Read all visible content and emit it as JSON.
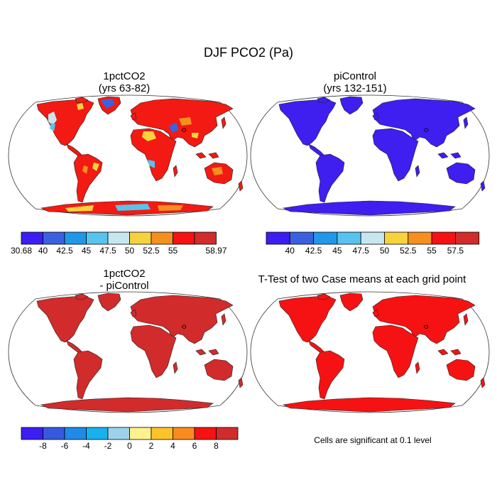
{
  "title": "DJF PCO2 (Pa)",
  "panels": [
    {
      "title_line1": "1pctCO2",
      "title_line2": "(yrs 63-82)"
    },
    {
      "title_line1": "piControl",
      "title_line2": "(yrs 132-151)"
    },
    {
      "title_line1": "1pctCO2",
      "title_line2": "- piControl"
    },
    {
      "title_line1": "T-Test of two Case means at each grid point",
      "title_line2": ""
    }
  ],
  "colorbars": [
    {
      "colors": [
        "#3c1ef2",
        "#3a62e0",
        "#1f98ea",
        "#56c4ee",
        "#c6e6f0",
        "#f7d23c",
        "#f58f1f",
        "#f61212",
        "#d12b2b"
      ],
      "labels": [
        "30.68",
        "40",
        "42.5",
        "45",
        "47.5",
        "50",
        "52.5",
        "55",
        "58.97"
      ],
      "label_mode": "edges"
    },
    {
      "colors": [
        "#3c1ef2",
        "#3a62e0",
        "#1f98ea",
        "#56c4ee",
        "#c6e6f0",
        "#f7d23c",
        "#f58f1f",
        "#f61212",
        "#d12b2b"
      ],
      "labels": [
        "40",
        "42.5",
        "45",
        "47.5",
        "50",
        "52.5",
        "55",
        "57.5"
      ],
      "label_mode": "inner"
    },
    {
      "colors": [
        "#3c1ef2",
        "#3758e0",
        "#1f8ae8",
        "#17b2ee",
        "#9ed2ec",
        "#fef28c",
        "#fdc32a",
        "#fb8a1e",
        "#f61212",
        "#d12b2b"
      ],
      "labels": [
        "-8",
        "-6",
        "-4",
        "-2",
        "0",
        "2",
        "4",
        "6",
        "8"
      ],
      "label_mode": "inner"
    }
  ],
  "map_fills": [
    "#f21a12",
    "#3f1ef0",
    "#d12b2b",
    "#f61212"
  ],
  "significance_note": "Cells are significant at 0.1 level"
}
